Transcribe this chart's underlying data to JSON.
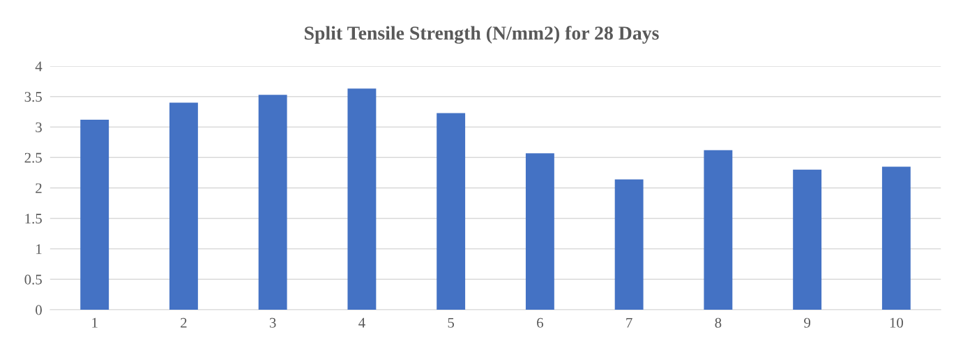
{
  "chart_data": {
    "type": "bar",
    "title": "Split Tensile Strength (N/mm2) for 28 Days",
    "categories": [
      "1",
      "2",
      "3",
      "4",
      "5",
      "6",
      "7",
      "8",
      "9",
      "10"
    ],
    "values": [
      3.12,
      3.4,
      3.53,
      3.63,
      3.23,
      2.57,
      2.14,
      2.62,
      2.3,
      2.35
    ],
    "color": "#4472c4",
    "ylim": [
      0,
      4
    ],
    "yticks": [
      0,
      {
        "value": 0.5,
        "label": "0.5"
      },
      1,
      {
        "value": 1.5,
        "label": "1.5"
      },
      2,
      {
        "value": 2.5,
        "label": "2.5"
      },
      3,
      {
        "value": 3.5,
        "label": "3.5"
      },
      4
    ],
    "grid": "y"
  }
}
